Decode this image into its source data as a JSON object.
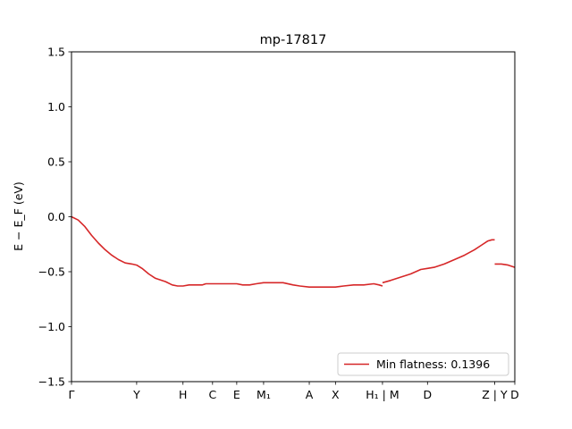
{
  "chart_data": {
    "type": "line",
    "title": "mp-17817",
    "xlabel": "",
    "ylabel": "E − E_F (eV)",
    "ylim": [
      -1.5,
      1.5
    ],
    "yticks": [
      -1.5,
      -1.0,
      -0.5,
      0.0,
      0.5,
      1.0,
      1.5
    ],
    "ytick_labels": [
      "−1.5",
      "−1.0",
      "−0.5",
      "0.0",
      "0.5",
      "1.0",
      "1.5"
    ],
    "xlim": [
      0,
      6.6
    ],
    "xticks": [
      {
        "pos": 0.0,
        "label": "Γ"
      },
      {
        "pos": 0.97,
        "label": "Y"
      },
      {
        "pos": 1.66,
        "label": "H"
      },
      {
        "pos": 2.1,
        "label": "C"
      },
      {
        "pos": 2.46,
        "label": "E"
      },
      {
        "pos": 2.86,
        "label": "M₁"
      },
      {
        "pos": 3.54,
        "label": "A"
      },
      {
        "pos": 3.93,
        "label": "X"
      },
      {
        "pos": 4.63,
        "label": "H₁ | M"
      },
      {
        "pos": 5.3,
        "label": "D"
      },
      {
        "pos": 6.3,
        "label": "Z | Y"
      },
      {
        "pos": 6.6,
        "label": "D"
      }
    ],
    "grid": false,
    "legend_position": "lower-right",
    "series": [
      {
        "name": "Min flatness: 0.1396",
        "color": "#d62728",
        "segments": [
          [
            [
              0.0,
              0.0
            ],
            [
              0.1,
              -0.03
            ],
            [
              0.2,
              -0.09
            ],
            [
              0.3,
              -0.17
            ],
            [
              0.4,
              -0.24
            ],
            [
              0.5,
              -0.3
            ],
            [
              0.6,
              -0.35
            ],
            [
              0.7,
              -0.39
            ],
            [
              0.8,
              -0.42
            ],
            [
              0.9,
              -0.43
            ],
            [
              0.97,
              -0.44
            ],
            [
              1.05,
              -0.47
            ],
            [
              1.15,
              -0.52
            ],
            [
              1.25,
              -0.56
            ],
            [
              1.4,
              -0.59
            ],
            [
              1.5,
              -0.62
            ],
            [
              1.58,
              -0.63
            ],
            [
              1.66,
              -0.63
            ],
            [
              1.75,
              -0.62
            ],
            [
              1.85,
              -0.62
            ],
            [
              1.95,
              -0.62
            ],
            [
              2.0,
              -0.61
            ],
            [
              2.1,
              -0.61
            ],
            [
              2.2,
              -0.61
            ],
            [
              2.3,
              -0.61
            ],
            [
              2.46,
              -0.61
            ],
            [
              2.55,
              -0.62
            ],
            [
              2.65,
              -0.62
            ],
            [
              2.75,
              -0.61
            ],
            [
              2.86,
              -0.6
            ],
            [
              3.0,
              -0.6
            ],
            [
              3.15,
              -0.6
            ],
            [
              3.3,
              -0.62
            ],
            [
              3.4,
              -0.63
            ],
            [
              3.54,
              -0.64
            ],
            [
              3.7,
              -0.64
            ],
            [
              3.82,
              -0.64
            ],
            [
              3.93,
              -0.64
            ],
            [
              4.05,
              -0.63
            ],
            [
              4.2,
              -0.62
            ],
            [
              4.35,
              -0.62
            ],
            [
              4.5,
              -0.61
            ],
            [
              4.58,
              -0.62
            ],
            [
              4.63,
              -0.63
            ]
          ],
          [
            [
              4.63,
              -0.6
            ],
            [
              4.75,
              -0.58
            ],
            [
              4.9,
              -0.55
            ],
            [
              5.05,
              -0.52
            ],
            [
              5.2,
              -0.48
            ],
            [
              5.3,
              -0.47
            ],
            [
              5.4,
              -0.46
            ],
            [
              5.55,
              -0.43
            ],
            [
              5.7,
              -0.39
            ],
            [
              5.85,
              -0.35
            ],
            [
              6.0,
              -0.3
            ],
            [
              6.1,
              -0.26
            ],
            [
              6.2,
              -0.22
            ],
            [
              6.26,
              -0.21
            ],
            [
              6.3,
              -0.21
            ]
          ],
          [
            [
              6.3,
              -0.43
            ],
            [
              6.4,
              -0.43
            ],
            [
              6.5,
              -0.44
            ],
            [
              6.6,
              -0.46
            ]
          ]
        ]
      }
    ]
  }
}
